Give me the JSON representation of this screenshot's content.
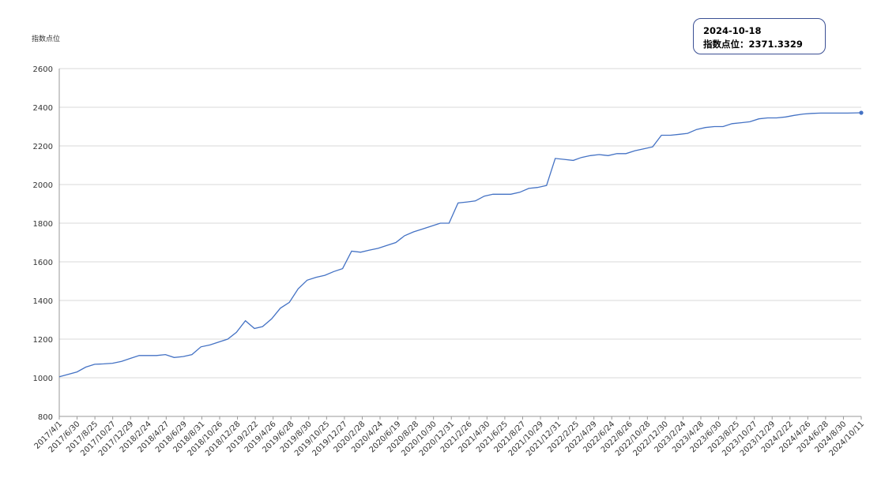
{
  "chart_data": {
    "type": "line",
    "ylabel": "指数点位",
    "ylim": [
      800,
      2600
    ],
    "yticks": [
      800,
      1000,
      1200,
      1400,
      1600,
      1800,
      2000,
      2200,
      2400,
      2600
    ],
    "grid": "horizontal",
    "series_color": "#4472c4",
    "xtick_labels": [
      "2017/4/1",
      "2017/6/30",
      "2017/8/25",
      "2017/10/27",
      "2017/12/29",
      "2018/2/24",
      "2018/4/27",
      "2018/6/29",
      "2018/8/31",
      "2018/10/26",
      "2018/12/28",
      "2019/2/22",
      "2019/4/26",
      "2019/6/28",
      "2019/8/30",
      "2019/10/25",
      "2019/12/27",
      "2020/2/28",
      "2020/4/24",
      "2020/6/19",
      "2020/8/28",
      "2020/10/30",
      "2020/12/31",
      "2021/2/26",
      "2021/4/30",
      "2021/6/25",
      "2021/8/27",
      "2021/10/29",
      "2021/12/31",
      "2022/2/25",
      "2022/4/29",
      "2022/6/24",
      "2022/8/26",
      "2022/10/28",
      "2022/12/30",
      "2023/2/24",
      "2023/4/28",
      "2023/6/30",
      "2023/8/25",
      "2023/10/27",
      "2023/12/29",
      "2024/2/22",
      "2024/4/26",
      "2024/6/28",
      "2024/8/30",
      "2024/10/11"
    ],
    "x": [
      "2017-04-01",
      "2017-06-01",
      "2017-07-01",
      "2017-08-01",
      "2017-09-01",
      "2017-10-01",
      "2017-11-01",
      "2017-12-01",
      "2018-01-01",
      "2018-02-01",
      "2018-03-01",
      "2018-04-01",
      "2018-05-01",
      "2018-06-01",
      "2018-07-01",
      "2018-08-01",
      "2018-09-01",
      "2018-10-01",
      "2018-11-01",
      "2018-12-01",
      "2019-01-01",
      "2019-02-01",
      "2019-03-01",
      "2019-04-01",
      "2019-05-01",
      "2019-06-01",
      "2019-07-01",
      "2019-08-01",
      "2019-09-01",
      "2019-10-01",
      "2019-11-01",
      "2019-12-01",
      "2020-01-01",
      "2020-02-01",
      "2020-03-01",
      "2020-04-01",
      "2020-05-01",
      "2020-06-01",
      "2020-07-01",
      "2020-08-01",
      "2020-09-01",
      "2020-10-01",
      "2020-11-01",
      "2020-12-01",
      "2021-01-01",
      "2021-02-01",
      "2021-03-01",
      "2021-04-01",
      "2021-05-01",
      "2021-06-01",
      "2021-07-01",
      "2021-08-01",
      "2021-09-01",
      "2021-10-01",
      "2021-11-01",
      "2021-12-01",
      "2022-01-01",
      "2022-02-01",
      "2022-03-01",
      "2022-04-01",
      "2022-05-01",
      "2022-06-01",
      "2022-07-01",
      "2022-08-01",
      "2022-09-01",
      "2022-10-01",
      "2022-11-01",
      "2022-12-01",
      "2023-01-01",
      "2023-02-01",
      "2023-03-01",
      "2023-04-01",
      "2023-05-01",
      "2023-06-01",
      "2023-07-01",
      "2023-08-01",
      "2023-09-01",
      "2023-10-01",
      "2023-11-01",
      "2023-12-01",
      "2024-01-01",
      "2024-02-01",
      "2024-03-01",
      "2024-04-01",
      "2024-05-01",
      "2024-06-01",
      "2024-07-01",
      "2024-08-01",
      "2024-09-01",
      "2024-10-18"
    ],
    "values": [
      1005,
      1030,
      1055,
      1070,
      1072,
      1075,
      1085,
      1100,
      1115,
      1115,
      1115,
      1120,
      1105,
      1110,
      1120,
      1160,
      1170,
      1185,
      1200,
      1235,
      1295,
      1255,
      1265,
      1305,
      1360,
      1390,
      1460,
      1505,
      1520,
      1530,
      1550,
      1565,
      1655,
      1650,
      1660,
      1670,
      1685,
      1700,
      1735,
      1755,
      1770,
      1785,
      1800,
      1800,
      1905,
      1910,
      1915,
      1940,
      1950,
      1950,
      1950,
      1960,
      1980,
      1985,
      1995,
      2135,
      2130,
      2125,
      2140,
      2150,
      2155,
      2150,
      2160,
      2160,
      2175,
      2185,
      2195,
      2255,
      2255,
      2260,
      2265,
      2285,
      2295,
      2300,
      2300,
      2315,
      2320,
      2325,
      2340,
      2345,
      2345,
      2350,
      2358,
      2365,
      2368,
      2370,
      2370,
      2370,
      2370,
      2371.3329
    ]
  },
  "tooltip": {
    "date": "2024-10-18",
    "label": "指数点位：",
    "value": "2371.3329"
  }
}
